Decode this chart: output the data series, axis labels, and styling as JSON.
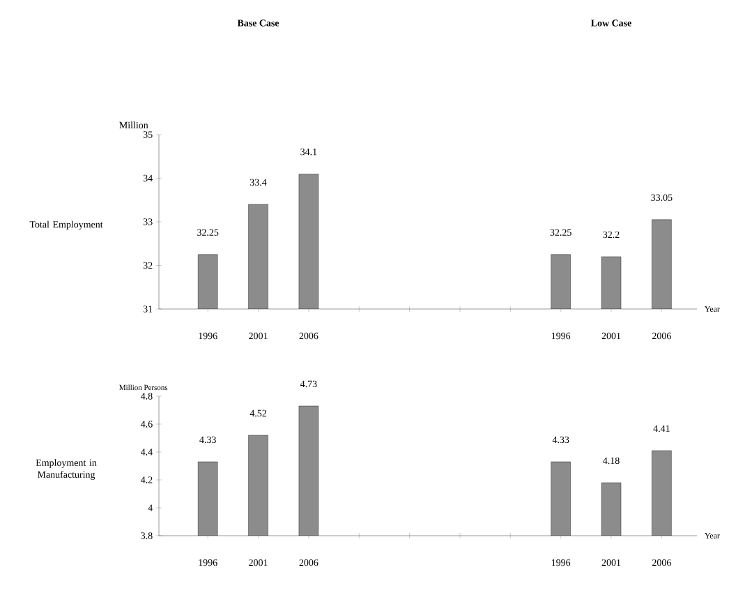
{
  "chart_data": [
    {
      "type": "bar",
      "title": "Total Employment",
      "ylabel": "Million",
      "xlabel": "Year",
      "annotations": [
        "Base Case",
        "Low Case"
      ],
      "categories": [
        "1996",
        "2001",
        "2006",
        null,
        null,
        null,
        null,
        "1996",
        "2001",
        "2006"
      ],
      "values": [
        32.25,
        33.4,
        34.1,
        null,
        null,
        null,
        null,
        32.25,
        32.2,
        33.05
      ],
      "value_labels": [
        "32.25",
        "33.4",
        "34.1",
        null,
        null,
        null,
        null,
        "32.25",
        "32.2",
        "33.05"
      ],
      "color": "#8c8c8c",
      "ylim": [
        31,
        35
      ],
      "yticks": [
        31,
        32,
        33,
        34,
        35
      ]
    },
    {
      "type": "bar",
      "title": "Employment in Manufacturing",
      "ylabel": "Million Persons",
      "xlabel": "Year",
      "categories": [
        "1996",
        "2001",
        "2006",
        null,
        null,
        null,
        null,
        "1996",
        "2001",
        "2006"
      ],
      "values": [
        4.33,
        4.52,
        4.73,
        null,
        null,
        null,
        null,
        4.33,
        4.18,
        4.41
      ],
      "value_labels": [
        "4.33",
        "4.52",
        "4.73",
        null,
        null,
        null,
        null,
        "4.33",
        "4.18",
        "4.41"
      ],
      "color": "#8c8c8c",
      "ylim": [
        3.8,
        4.8
      ],
      "yticks": [
        3.8,
        4,
        4.2,
        4.4,
        4.6,
        4.8
      ]
    }
  ]
}
